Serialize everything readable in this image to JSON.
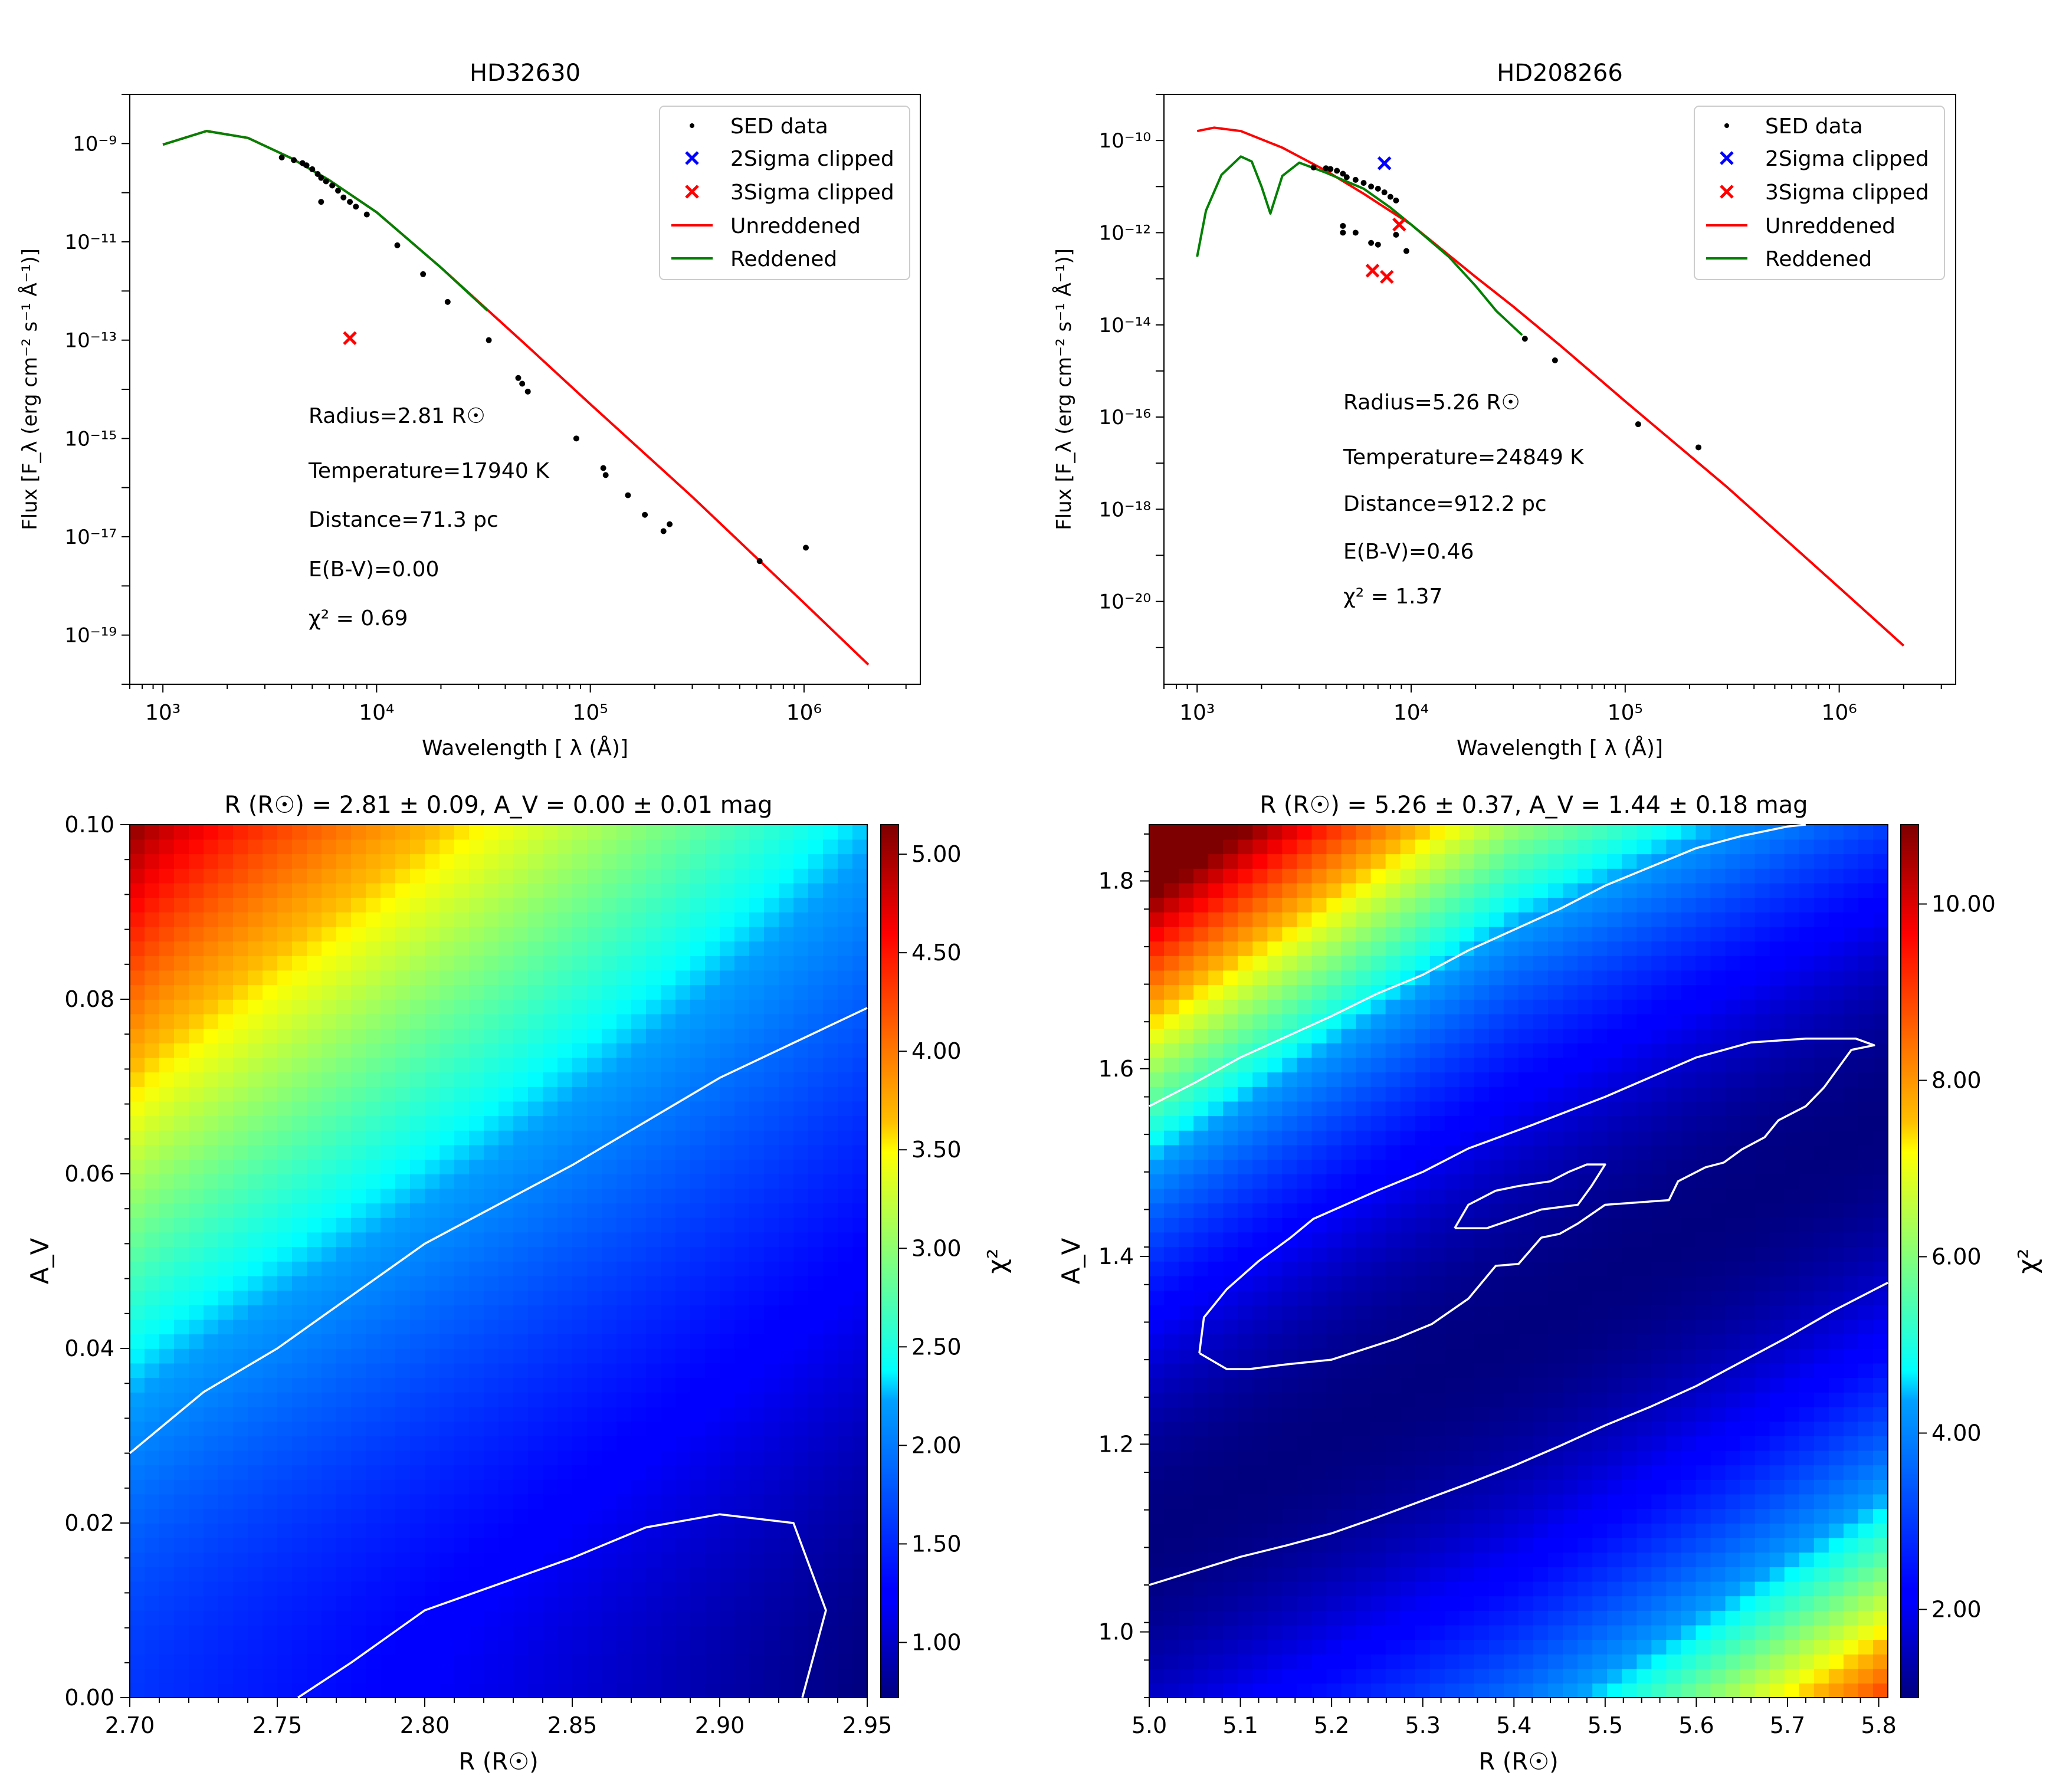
{
  "figure": {
    "sup_scale_note": "",
    "colors": {
      "unreddened": "#ff0000",
      "reddened": "#008000",
      "sed": "#000000",
      "clip2": "#0000ff",
      "clip3": "#ff0000",
      "contour": "#ffffff"
    }
  },
  "chart_data": [
    {
      "id": "sed1",
      "type": "line",
      "title": "HD32630",
      "xlabel": "Wavelength [ λ (Å)]",
      "ylabel": "Flux [F_λ (erg cm⁻² s⁻¹ Å⁻¹)]",
      "xscale": "log",
      "yscale": "log",
      "xlim": [
        700,
        3500000
      ],
      "ylim": [
        1e-20,
        1e-08
      ],
      "xticks": [
        1000,
        10000,
        100000,
        1000000
      ],
      "xtick_labels": [
        "10³",
        "10⁴",
        "10⁵",
        "10⁶"
      ],
      "yticks": [
        1e-19,
        1e-17,
        1e-15,
        1e-13,
        1e-11,
        1e-09
      ],
      "ytick_labels": [
        "10⁻¹⁹",
        "10⁻¹⁷",
        "10⁻¹⁵",
        "10⁻¹³",
        "10⁻¹¹",
        "10⁻⁹"
      ],
      "legend": {
        "location": "upper right",
        "entries": [
          "SED data",
          "2Sigma clipped",
          "3Sigma clipped",
          "Unreddened",
          "Reddened"
        ]
      },
      "annotations": [
        "Radius=2.81 R☉",
        "Temperature=17940 K",
        "Distance=71.3 pc",
        "E(B-V)=0.00",
        "χ² = 0.69"
      ],
      "series": [
        {
          "name": "Unreddened",
          "kind": "line",
          "x": [
            1000,
            1600,
            2500,
            4000,
            6000,
            10000,
            20000,
            50000,
            100000,
            300000,
            1000000,
            2000000
          ],
          "y": [
            9.5e-10,
            1.8e-09,
            1.3e-09,
            5e-10,
            1.8e-10,
            4e-11,
            3e-12,
            8e-14,
            5e-15,
            6.5e-17,
            4.5e-19,
            2.5e-20
          ]
        },
        {
          "name": "Reddened",
          "kind": "line",
          "x": [
            1000,
            1600,
            2500,
            4000,
            6000,
            10000,
            20000,
            33000
          ],
          "y": [
            9.5e-10,
            1.8e-09,
            1.3e-09,
            5e-10,
            1.8e-10,
            4e-11,
            3e-12,
            4e-13
          ]
        },
        {
          "name": "SED data",
          "kind": "points",
          "x": [
            3600,
            4100,
            4500,
            4700,
            5000,
            5300,
            5500,
            5800,
            6200,
            6600,
            7000,
            7500,
            8000,
            9000,
            12500,
            16500,
            21500,
            33500,
            46000,
            48000,
            51000,
            86000,
            115000,
            118000,
            150000,
            180000,
            220000,
            235000,
            5500,
            620000,
            1020000
          ],
          "y": [
            5.2e-10,
            4.6e-10,
            4e-10,
            3.6e-10,
            3e-10,
            2.4e-10,
            2e-10,
            1.7e-10,
            1.4e-10,
            1.1e-10,
            8e-11,
            6.5e-11,
            5.2e-11,
            3.6e-11,
            8.5e-12,
            2.2e-12,
            6e-13,
            1e-13,
            1.7e-14,
            1.3e-14,
            9e-15,
            1e-15,
            2.5e-16,
            1.8e-16,
            7e-17,
            2.8e-17,
            1.3e-17,
            1.8e-17,
            6.5e-11,
            3.2e-18,
            6e-18
          ]
        },
        {
          "name": "3Sigma clipped",
          "kind": "x-marker",
          "x": [
            7500
          ],
          "y": [
            1.1e-13
          ]
        }
      ]
    },
    {
      "id": "sed2",
      "type": "line",
      "title": "HD208266",
      "xlabel": "Wavelength [ λ (Å)]",
      "ylabel": "Flux [F_λ (erg cm⁻² s⁻¹ Å⁻¹)]",
      "xscale": "log",
      "yscale": "log",
      "xlim": [
        700,
        3500000
      ],
      "ylim": [
        1.6e-22,
        1e-09
      ],
      "xticks": [
        1000,
        10000,
        100000,
        1000000
      ],
      "xtick_labels": [
        "10³",
        "10⁴",
        "10⁵",
        "10⁶"
      ],
      "yticks": [
        1e-20,
        1e-18,
        1e-16,
        1e-14,
        1e-12,
        1e-10
      ],
      "ytick_labels": [
        "10⁻²⁰",
        "10⁻¹⁸",
        "10⁻¹⁶",
        "10⁻¹⁴",
        "10⁻¹²",
        "10⁻¹⁰"
      ],
      "legend": {
        "location": "upper right",
        "entries": [
          "SED data",
          "2Sigma clipped",
          "3Sigma clipped",
          "Unreddened",
          "Reddened"
        ]
      },
      "annotations": [
        "Radius=5.26 R☉",
        "Temperature=24849 K",
        "Distance=912.2 pc",
        "E(B-V)=0.46",
        "χ² = 1.37"
      ],
      "series": [
        {
          "name": "Unreddened",
          "kind": "line",
          "x": [
            1000,
            1200,
            1600,
            2500,
            4000,
            6000,
            10000,
            20000,
            30000,
            50000,
            100000,
            300000,
            1000000,
            2000000
          ],
          "y": [
            1.6e-10,
            1.9e-10,
            1.6e-10,
            7e-11,
            2.2e-11,
            7e-12,
            1.5e-12,
            1.1e-13,
            2.5e-14,
            3.5e-15,
            2.2e-16,
            3e-18,
            2e-20,
            1.1e-21
          ]
        },
        {
          "name": "Reddened",
          "kind": "line",
          "x": [
            1000,
            1100,
            1300,
            1600,
            1800,
            2000,
            2200,
            2500,
            3000,
            4000,
            6000,
            8000,
            10000,
            15000,
            20000,
            25000,
            33000
          ],
          "y": [
            3e-13,
            3e-12,
            1.8e-11,
            4.5e-11,
            3.5e-11,
            1e-11,
            2.6e-12,
            1.7e-11,
            3.3e-11,
            2e-11,
            9e-12,
            3.5e-12,
            1.5e-12,
            3e-13,
            7e-14,
            2e-14,
            6e-15
          ]
        },
        {
          "name": "SED data",
          "kind": "points",
          "x": [
            3500,
            4000,
            4200,
            4500,
            4800,
            5000,
            5500,
            6000,
            6500,
            7000,
            7500,
            8000,
            8500,
            4800,
            4800,
            5500,
            6500,
            7000,
            8500,
            9500,
            34000,
            47000,
            115000,
            220000
          ],
          "y": [
            2.6e-11,
            2.5e-11,
            2.4e-11,
            2.2e-11,
            1.9e-11,
            1.6e-11,
            1.4e-11,
            1.2e-11,
            1e-11,
            9e-12,
            7.5e-12,
            6e-12,
            5e-12,
            1.4e-12,
            1e-12,
            1e-12,
            6e-13,
            5.5e-13,
            9e-13,
            4e-13,
            5e-15,
            1.7e-15,
            7e-17,
            2.2e-17
          ]
        },
        {
          "name": "2Sigma clipped",
          "kind": "x-marker",
          "x": [
            7500
          ],
          "y": [
            3.2e-11
          ]
        },
        {
          "name": "3Sigma clipped",
          "kind": "x-marker",
          "x": [
            6600,
            7700,
            8800
          ],
          "y": [
            1.5e-13,
            1.1e-13,
            1.5e-12
          ]
        }
      ]
    },
    {
      "id": "heat1",
      "type": "heatmap",
      "title": "R (R☉) = 2.81 ± 0.09, A_V = 0.00 ± 0.01 mag",
      "xlabel": "R (R☉)",
      "ylabel": "A_V",
      "xlim": [
        2.7,
        2.95
      ],
      "ylim": [
        0.0,
        0.1
      ],
      "xticks": [
        2.7,
        2.75,
        2.8,
        2.85,
        2.9,
        2.95
      ],
      "xtick_labels": [
        "2.70",
        "2.75",
        "2.80",
        "2.85",
        "2.90",
        "2.95"
      ],
      "yticks": [
        0.0,
        0.02,
        0.04,
        0.06,
        0.08,
        0.1
      ],
      "ytick_labels": [
        "0.00",
        "0.02",
        "0.04",
        "0.06",
        "0.08",
        "0.10"
      ],
      "colorbar": {
        "label": "χ²",
        "range": [
          0.72,
          5.15
        ],
        "ticks": [
          1.0,
          1.5,
          2.0,
          2.5,
          3.0,
          3.5,
          4.0,
          4.5,
          5.0
        ],
        "tick_labels": [
          "1.00",
          "1.50",
          "2.00",
          "2.50",
          "3.00",
          "3.50",
          "4.00",
          "4.50",
          "5.00"
        ]
      },
      "surface_corners": {
        "top_left": 5.15,
        "top_right": 2.3,
        "bottom_left": 1.6,
        "bottom_right": 0.72
      },
      "contours": [
        {
          "x": [
            2.7,
            2.725,
            2.75,
            2.775,
            2.8,
            2.85,
            2.9,
            2.925,
            2.95
          ],
          "y": [
            0.028,
            0.035,
            0.04,
            0.046,
            0.052,
            0.061,
            0.071,
            0.075,
            0.079
          ]
        },
        {
          "x": [
            2.757,
            2.775,
            2.8,
            2.85,
            2.875,
            2.9,
            2.925,
            2.936,
            2.928
          ],
          "y": [
            0.0,
            0.004,
            0.01,
            0.016,
            0.0195,
            0.021,
            0.02,
            0.01,
            0.0
          ]
        }
      ]
    },
    {
      "id": "heat2",
      "type": "heatmap",
      "title": "R (R☉) = 5.26 ± 0.37, A_V = 1.44 ± 0.18 mag",
      "xlabel": "R (R☉)",
      "ylabel": "A_V",
      "xlim": [
        5.0,
        5.81
      ],
      "ylim": [
        0.93,
        1.86
      ],
      "xticks": [
        5.0,
        5.1,
        5.2,
        5.3,
        5.4,
        5.5,
        5.6,
        5.7,
        5.8
      ],
      "xtick_labels": [
        "5.0",
        "5.1",
        "5.2",
        "5.3",
        "5.4",
        "5.5",
        "5.6",
        "5.7",
        "5.8"
      ],
      "yticks": [
        1.0,
        1.2,
        1.4,
        1.6,
        1.8
      ],
      "ytick_labels": [
        "1.0",
        "1.2",
        "1.4",
        "1.6",
        "1.8"
      ],
      "colorbar": {
        "label": "χ²",
        "range": [
          1.0,
          10.9
        ],
        "ticks": [
          2.0,
          4.0,
          6.0,
          8.0,
          10.0
        ],
        "tick_labels": [
          "2.00",
          "4.00",
          "6.00",
          "8.00",
          "10.00"
        ]
      },
      "surface": {
        "valley_intercept": 1.1,
        "valley_slope": 0.55,
        "scale": 18,
        "floor": 1.0
      },
      "contours": [
        {
          "x": [
            5.0,
            5.05,
            5.1,
            5.15,
            5.2,
            5.25,
            5.3,
            5.35,
            5.4,
            5.45,
            5.5,
            5.55,
            5.6,
            5.65,
            5.7,
            5.72
          ],
          "y": [
            1.56,
            1.585,
            1.612,
            1.634,
            1.656,
            1.68,
            1.7,
            1.726,
            1.748,
            1.77,
            1.795,
            1.815,
            1.835,
            1.848,
            1.858,
            1.86
          ]
        },
        {
          "x": [
            5.0,
            5.05,
            5.1,
            5.15,
            5.2,
            5.25,
            5.3,
            5.35,
            5.4,
            5.45,
            5.5,
            5.55,
            5.6,
            5.65,
            5.7,
            5.75,
            5.81
          ],
          "y": [
            1.05,
            1.065,
            1.08,
            1.092,
            1.105,
            1.122,
            1.14,
            1.158,
            1.177,
            1.198,
            1.22,
            1.24,
            1.262,
            1.288,
            1.314,
            1.342,
            1.372
          ]
        },
        {
          "x": [
            5.055,
            5.06,
            5.085,
            5.12,
            5.155,
            5.18,
            5.25,
            5.3,
            5.35,
            5.42,
            5.5,
            5.6,
            5.66,
            5.72,
            5.775,
            5.795,
            5.77,
            5.74,
            5.72,
            5.69,
            5.675,
            5.65,
            5.63,
            5.61,
            5.58,
            5.57,
            5.5,
            5.47,
            5.45,
            5.43,
            5.405,
            5.38,
            5.35,
            5.31,
            5.27,
            5.2,
            5.15,
            5.11,
            5.085,
            5.055
          ],
          "y": [
            1.297,
            1.335,
            1.365,
            1.395,
            1.42,
            1.44,
            1.47,
            1.49,
            1.515,
            1.54,
            1.57,
            1.612,
            1.628,
            1.632,
            1.632,
            1.625,
            1.62,
            1.58,
            1.56,
            1.545,
            1.527,
            1.514,
            1.5,
            1.495,
            1.48,
            1.46,
            1.455,
            1.435,
            1.424,
            1.42,
            1.392,
            1.39,
            1.355,
            1.328,
            1.312,
            1.29,
            1.285,
            1.28,
            1.28,
            1.297
          ]
        },
        {
          "x": [
            5.335,
            5.35,
            5.38,
            5.405,
            5.44,
            5.46,
            5.48,
            5.5,
            5.485,
            5.47,
            5.43,
            5.4,
            5.37,
            5.335
          ],
          "y": [
            1.43,
            1.455,
            1.47,
            1.475,
            1.48,
            1.49,
            1.498,
            1.498,
            1.475,
            1.455,
            1.45,
            1.44,
            1.43,
            1.43
          ]
        }
      ]
    }
  ]
}
